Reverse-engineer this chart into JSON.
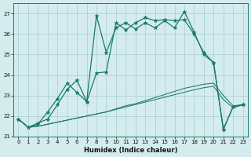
{
  "xlabel": "Humidex (Indice chaleur)",
  "bg_color": "#d4ecee",
  "grid_color": "#a8cccc",
  "line_color": "#1a7a6e",
  "xlim": [
    -0.5,
    23.5
  ],
  "ylim": [
    21.0,
    27.5
  ],
  "yticks": [
    21,
    22,
    23,
    24,
    25,
    26,
    27
  ],
  "xticks": [
    0,
    1,
    2,
    3,
    4,
    5,
    6,
    7,
    8,
    9,
    10,
    11,
    12,
    13,
    14,
    15,
    16,
    17,
    18,
    19,
    20,
    21,
    22,
    23
  ],
  "line1_x": [
    0,
    1,
    2,
    3,
    4,
    5,
    6,
    7,
    8,
    9,
    10,
    11,
    12,
    13,
    14,
    15,
    16,
    17,
    18,
    19,
    20,
    21,
    22,
    23
  ],
  "line1_y": [
    21.85,
    21.45,
    21.5,
    21.6,
    21.7,
    21.8,
    21.9,
    22.0,
    22.1,
    22.2,
    22.35,
    22.5,
    22.6,
    22.75,
    22.9,
    23.05,
    23.2,
    23.35,
    23.45,
    23.55,
    23.6,
    23.0,
    22.5,
    22.55
  ],
  "line2_x": [
    0,
    1,
    2,
    3,
    4,
    5,
    6,
    7,
    8,
    9,
    10,
    11,
    12,
    13,
    14,
    15,
    16,
    17,
    18,
    19,
    20,
    21,
    22,
    23
  ],
  "line2_y": [
    21.85,
    21.45,
    21.5,
    21.6,
    21.7,
    21.8,
    21.9,
    22.0,
    22.1,
    22.2,
    22.32,
    22.44,
    22.56,
    22.68,
    22.8,
    22.92,
    23.04,
    23.16,
    23.28,
    23.38,
    23.45,
    22.8,
    22.4,
    22.55
  ],
  "line3_x": [
    0,
    1,
    2,
    3,
    4,
    5,
    6,
    7,
    8,
    9,
    10,
    11,
    12,
    13,
    14,
    15,
    16,
    17,
    18,
    19,
    20,
    21,
    22,
    23
  ],
  "line3_y": [
    21.85,
    21.45,
    21.6,
    22.2,
    22.85,
    23.6,
    23.15,
    22.7,
    26.9,
    25.1,
    26.3,
    26.55,
    26.25,
    26.55,
    26.3,
    26.65,
    26.3,
    27.1,
    26.1,
    25.0,
    24.6,
    21.35,
    22.45,
    22.55
  ],
  "line4_x": [
    0,
    1,
    2,
    3,
    4,
    5,
    6,
    7,
    8,
    9,
    10,
    11,
    12,
    13,
    14,
    15,
    16,
    17,
    18,
    19,
    20,
    21,
    22,
    23
  ],
  "line4_y": [
    21.85,
    21.45,
    21.65,
    21.85,
    22.55,
    23.3,
    23.75,
    22.7,
    24.1,
    24.15,
    26.55,
    26.2,
    26.55,
    26.8,
    26.65,
    26.7,
    26.65,
    26.7,
    26.0,
    25.1,
    24.6,
    21.35,
    22.45,
    22.55
  ]
}
